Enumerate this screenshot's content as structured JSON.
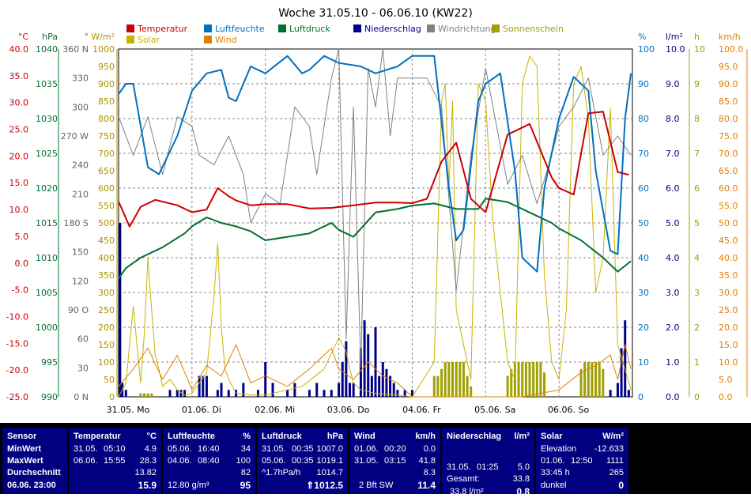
{
  "chart_data": {
    "type": "line",
    "title": "Woche 31.05.10 - 06.06.10 (KW22)",
    "x_labels": [
      "31.05.  Mo",
      "01.06.  Di",
      "02.06.  Mi",
      "03.06.  Do",
      "04.06.  Fr",
      "05.06.  Sa",
      "06.06.  So"
    ],
    "legend": [
      {
        "name": "Temperatur",
        "color": "#cc0000"
      },
      {
        "name": "Luftfeuchte",
        "color": "#0070c0"
      },
      {
        "name": "Luftdruck",
        "color": "#007030"
      },
      {
        "name": "Niederschlag",
        "color": "#00008b"
      },
      {
        "name": "Windrichtung",
        "color": "#808080"
      },
      {
        "name": "Sonnenschein",
        "color": "#a0a000"
      },
      {
        "name": "Solar",
        "color": "#c8b400"
      },
      {
        "name": "Wind",
        "color": "#e08000"
      }
    ],
    "axes": [
      {
        "unit": "°C",
        "color": "#cc0000",
        "ticks": [
          "40.0",
          "35.0",
          "30.0",
          "25.0",
          "20.0",
          "15.0",
          "10.0",
          "5.0",
          "0.0",
          "-5.0",
          "-10.0",
          "-15.0",
          "-20.0",
          "-25.0"
        ],
        "range": [
          -25,
          40
        ]
      },
      {
        "unit": "hPa",
        "color": "#007030",
        "ticks": [
          "1040",
          "1035",
          "1030",
          "1025",
          "1020",
          "1015",
          "1010",
          "1005",
          "1000",
          "995",
          "990"
        ],
        "range": [
          990,
          1040
        ]
      },
      {
        "unit": "°",
        "color": "#606060",
        "ticks": [
          "360 N",
          "330",
          "300",
          "270 W",
          "240",
          "210",
          "180 S",
          "150",
          "120",
          "90 O",
          "60",
          "30",
          "0 N"
        ],
        "range": [
          0,
          360
        ]
      },
      {
        "unit": "W/m²",
        "color": "#b09000",
        "ticks": [
          "1000",
          "950",
          "900",
          "850",
          "800",
          "750",
          "700",
          "650",
          "600",
          "550",
          "500",
          "450",
          "400",
          "350",
          "300",
          "250",
          "200",
          "150",
          "100",
          "50",
          "0"
        ],
        "range": [
          0,
          1000
        ]
      },
      {
        "unit": "%",
        "color": "#0070c0",
        "ticks": [
          "100",
          "90",
          "80",
          "70",
          "60",
          "50",
          "40",
          "30",
          "20",
          "10",
          "0"
        ],
        "range": [
          0,
          100
        ]
      },
      {
        "unit": "l/m²",
        "color": "#00008b",
        "ticks": [
          "10.0",
          "9.0",
          "8.0",
          "7.0",
          "6.0",
          "5.0",
          "4.0",
          "3.0",
          "2.0",
          "1.0",
          "0.0"
        ],
        "range": [
          0,
          10
        ]
      },
      {
        "unit": "h",
        "color": "#a0a000",
        "ticks": [
          "10",
          "9",
          "8",
          "7",
          "6",
          "5",
          "4",
          "3",
          "2",
          "1",
          "0"
        ],
        "range": [
          0,
          10
        ]
      },
      {
        "unit": "km/h",
        "color": "#e08000",
        "ticks": [
          "100.0",
          "95.0",
          "90.0",
          "85.0",
          "80.0",
          "75.0",
          "70.0",
          "65.0",
          "60.0",
          "55.0",
          "50.0",
          "45.0",
          "40.0",
          "35.0",
          "30.0",
          "25.0",
          "20.0",
          "15.0",
          "10.0",
          "5.0",
          "0.0"
        ],
        "range": [
          0,
          100
        ]
      }
    ],
    "series": [
      {
        "name": "Temperatur",
        "unit": "°C",
        "t": [
          0,
          0.15,
          0.3,
          0.5,
          0.8,
          1.0,
          1.2,
          1.35,
          1.5,
          1.6,
          1.8,
          2.0,
          2.3,
          2.6,
          2.9,
          3.2,
          3.5,
          3.8,
          4.0,
          4.2,
          4.4,
          4.6,
          4.8,
          5.0,
          5.3,
          5.6,
          5.9,
          6.0,
          6.2,
          6.4,
          6.6,
          6.8,
          6.95
        ],
        "values": [
          11.5,
          6.8,
          10.5,
          11.8,
          10.8,
          9.5,
          10.0,
          14.0,
          12.5,
          11.7,
          10.8,
          11.0,
          11.0,
          10.2,
          10.3,
          10.8,
          11.3,
          11.3,
          11.2,
          12.0,
          19.0,
          22.5,
          12.0,
          9.5,
          24.0,
          26.0,
          16.0,
          14.0,
          12.8,
          28.0,
          28.3,
          17.0,
          16.5
        ]
      },
      {
        "name": "Luftfeuchte",
        "unit": "%",
        "t": [
          0,
          0.1,
          0.2,
          0.4,
          0.55,
          0.8,
          1.0,
          1.2,
          1.4,
          1.5,
          1.6,
          1.8,
          2.0,
          2.3,
          2.5,
          2.6,
          2.8,
          3.0,
          3.3,
          3.5,
          3.8,
          4.0,
          4.2,
          4.3,
          4.5,
          4.6,
          4.7,
          4.9,
          5.0,
          5.2,
          5.4,
          5.5,
          5.7,
          5.8,
          6.0,
          6.2,
          6.4,
          6.5,
          6.7,
          6.8,
          6.9,
          6.98
        ],
        "values": [
          87,
          90,
          90,
          66,
          64,
          75,
          88,
          93,
          94,
          86,
          85,
          95,
          93,
          98,
          93,
          94,
          98,
          96,
          95,
          93,
          95,
          98,
          98,
          98,
          60,
          45,
          48,
          85,
          90,
          93,
          65,
          40,
          36,
          60,
          80,
          92,
          88,
          65,
          42,
          41,
          80,
          93
        ]
      },
      {
        "name": "Luftdruck",
        "unit": "hPa",
        "t": [
          0,
          0.1,
          0.3,
          0.6,
          0.9,
          1.0,
          1.2,
          1.4,
          1.6,
          1.8,
          2.0,
          2.3,
          2.6,
          2.9,
          3.0,
          3.2,
          3.5,
          3.8,
          4.0,
          4.3,
          4.6,
          4.9,
          5.0,
          5.3,
          5.6,
          5.9,
          6.0,
          6.3,
          6.6,
          6.8,
          6.98
        ],
        "values": [
          1007.0,
          1008.5,
          1010.0,
          1011.5,
          1013.5,
          1014.5,
          1015.8,
          1015.0,
          1014.5,
          1013.8,
          1012.5,
          1013.0,
          1013.5,
          1015.0,
          1014.0,
          1013.0,
          1016.5,
          1017.0,
          1017.5,
          1017.8,
          1017.0,
          1017.0,
          1018.5,
          1018.0,
          1016.5,
          1015.0,
          1014.2,
          1012.5,
          1010.0,
          1008.0,
          1009.5
        ]
      },
      {
        "name": "Windrichtung",
        "unit": "°",
        "t": [
          0,
          0.2,
          0.4,
          0.6,
          0.8,
          1.0,
          1.1,
          1.3,
          1.5,
          1.7,
          1.8,
          2.0,
          2.2,
          2.4,
          2.6,
          2.7,
          2.9,
          3.0,
          3.1,
          3.2,
          3.3,
          3.4,
          3.5,
          3.6,
          3.7,
          3.8,
          4.0,
          4.2,
          4.4,
          4.6,
          4.8,
          5.0,
          5.1,
          5.3,
          5.5,
          5.7,
          5.9,
          6.0,
          6.2,
          6.4,
          6.6,
          6.8,
          6.98
        ],
        "values": [
          290,
          250,
          290,
          230,
          290,
          280,
          250,
          240,
          270,
          230,
          180,
          210,
          200,
          300,
          280,
          230,
          330,
          360,
          60,
          300,
          30,
          340,
          300,
          360,
          270,
          330,
          330,
          330,
          300,
          110,
          250,
          340,
          300,
          220,
          250,
          200,
          250,
          280,
          300,
          330,
          250,
          270,
          250
        ]
      },
      {
        "name": "Solar",
        "unit": "W/m²",
        "t": [
          0,
          0.1,
          0.2,
          0.3,
          0.35,
          0.4,
          0.45,
          0.5,
          0.55,
          0.6,
          0.7,
          0.8,
          0.9,
          1.0,
          1.2,
          1.3,
          1.35,
          1.4,
          1.45,
          1.5,
          1.6,
          1.8,
          2.0,
          2.5,
          2.8,
          3.0,
          3.1,
          3.15,
          3.2,
          3.3,
          3.5,
          3.8,
          4.0,
          4.3,
          4.4,
          4.45,
          4.5,
          4.55,
          4.6,
          4.7,
          4.8,
          4.9,
          5.0,
          5.1,
          5.2,
          5.3,
          5.4,
          5.5,
          5.6,
          5.7,
          5.8,
          5.9,
          6.0,
          6.1,
          6.2,
          6.3,
          6.4,
          6.5,
          6.6,
          6.7,
          6.8,
          6.9,
          6.98
        ],
        "values": [
          0,
          40,
          260,
          40,
          180,
          400,
          250,
          120,
          80,
          30,
          50,
          20,
          5,
          10,
          70,
          290,
          440,
          200,
          80,
          50,
          10,
          5,
          5,
          30,
          80,
          170,
          130,
          80,
          40,
          20,
          10,
          5,
          0,
          100,
          850,
          900,
          600,
          850,
          250,
          150,
          50,
          900,
          850,
          500,
          300,
          100,
          50,
          900,
          980,
          950,
          350,
          100,
          50,
          250,
          900,
          950,
          800,
          300,
          400,
          830,
          150,
          80,
          20
        ]
      },
      {
        "name": "Wind",
        "unit": "km/h",
        "t": [
          0,
          0.2,
          0.4,
          0.6,
          0.8,
          1.0,
          1.2,
          1.4,
          1.6,
          1.8,
          2.0,
          2.3,
          2.6,
          2.9,
          3.0,
          3.2,
          3.4,
          3.6,
          3.8,
          4.0,
          4.5,
          5.0,
          5.5,
          6.0,
          6.3,
          6.5,
          6.7,
          6.8,
          6.9,
          6.98
        ],
        "values": [
          3,
          8,
          14,
          5,
          12,
          2,
          9,
          6,
          15,
          4,
          6,
          3,
          8,
          14,
          8,
          5,
          10,
          6,
          4,
          0,
          0,
          0,
          0,
          2,
          7,
          9,
          12,
          5,
          15,
          8
        ]
      },
      {
        "name": "Niederschlag",
        "unit": "l/m²",
        "type": "bar",
        "t": [
          0.02,
          0.05,
          0.1,
          0.7,
          0.8,
          0.85,
          0.9,
          1.1,
          1.15,
          1.2,
          1.35,
          1.4,
          1.5,
          1.6,
          1.7,
          1.9,
          2.0,
          2.1,
          2.3,
          2.4,
          2.6,
          2.7,
          2.8,
          2.9,
          3.0,
          3.05,
          3.1,
          3.15,
          3.2,
          3.3,
          3.35,
          3.4,
          3.45,
          3.5,
          3.55,
          3.6,
          3.65,
          3.7,
          3.75,
          3.8,
          3.9,
          4.0,
          6.7,
          6.8,
          6.85,
          6.9,
          6.95
        ],
        "values": [
          5.0,
          0.4,
          0.2,
          0.2,
          0.2,
          0.2,
          0.2,
          0.6,
          0.6,
          0.6,
          0.2,
          0.4,
          0.2,
          0.2,
          0.4,
          0.2,
          1.0,
          0.4,
          0.2,
          0.4,
          0.2,
          0.4,
          0.2,
          0.2,
          0.4,
          1.0,
          1.6,
          0.4,
          0.4,
          1.4,
          2.2,
          1.8,
          0.6,
          2.0,
          0.6,
          1.0,
          0.8,
          0.6,
          0.4,
          0.2,
          0.2,
          0.2,
          0.2,
          0.4,
          1.4,
          2.2,
          0.2
        ]
      },
      {
        "name": "Sonnenschein",
        "unit": "h",
        "type": "bar",
        "t": [
          0.3,
          0.35,
          0.4,
          0.45,
          4.3,
          4.35,
          4.4,
          4.45,
          4.5,
          4.55,
          4.6,
          4.65,
          4.7,
          4.75,
          4.8,
          5.3,
          5.35,
          5.4,
          5.45,
          5.5,
          5.55,
          5.6,
          5.65,
          5.7,
          5.75,
          5.8,
          6.3,
          6.35,
          6.4,
          6.45,
          6.5,
          6.55,
          6.6
        ],
        "values": [
          0.1,
          0.1,
          0.1,
          0.1,
          0.6,
          0.6,
          0.8,
          1.0,
          1.0,
          1.0,
          1.0,
          1.0,
          1.0,
          0.6,
          0.3,
          0.6,
          0.8,
          1.0,
          1.0,
          1.0,
          1.0,
          1.0,
          1.0,
          1.0,
          1.0,
          0.7,
          0.8,
          1.0,
          1.0,
          1.0,
          1.0,
          1.0,
          0.8
        ]
      }
    ]
  },
  "table": {
    "sensor": {
      "header": "Sensor",
      "rows": [
        "MinWert",
        "MaxWert",
        "Durchschnitt"
      ],
      "footer": "06.06. 23:00"
    },
    "temperatur": {
      "header": "Temperatur",
      "unit": "°C",
      "min": {
        "date": "31.05.",
        "time": "05:10",
        "val": "4.9"
      },
      "max": {
        "date": "06.06.",
        "time": "15:55",
        "val": "28.3"
      },
      "avg": "13.82",
      "cur": "15.9"
    },
    "luftfeuchte": {
      "header": "Luftfeuchte",
      "unit": "%",
      "min": {
        "date": "05.06.",
        "time": "16:40",
        "val": "34"
      },
      "max": {
        "date": "04.06.",
        "time": "08:40",
        "val": "100"
      },
      "avg": "82",
      "abs": "12.80 g/m³",
      "cur": "95"
    },
    "luftdruck": {
      "header": "Luftdruck",
      "unit": "hPa",
      "min": {
        "date": "31.05.",
        "time": "00:35",
        "val": "1007.0"
      },
      "max": {
        "date": "05.06.",
        "time": "00:35",
        "val": "1019.1"
      },
      "trend": "^1.7hPa/h",
      "avg": "1014.7",
      "cur": "1012.5"
    },
    "wind": {
      "header": "Wind",
      "unit": "km/h",
      "min": {
        "date": "01.06.",
        "time": "00:20",
        "val": "0.0"
      },
      "max": {
        "date": "31.05.",
        "time": "03:15",
        "val": "41.8"
      },
      "avg": "8.3",
      "bft": "2 Bft SW",
      "cur": "11.4"
    },
    "niederschlag": {
      "header": "Niederschlag",
      "unit": "l/m²",
      "max": {
        "date": "31.05.",
        "time": "01:25",
        "val": "5.0"
      },
      "gesamt_label": "Gesamt:",
      "gesamt": "33.8",
      "cur_label": "33.8 l/m²",
      "cur": "0.8"
    },
    "solar": {
      "header": "Solar",
      "unit": "W/m²",
      "elev_label": "Elevation",
      "elev": "-12.633",
      "max": {
        "date": "01.06.",
        "time": "12:50",
        "val": "1111"
      },
      "sun_label": "33:45 h",
      "sun": "265",
      "state_label": "dunkel",
      "cur": "0"
    }
  }
}
